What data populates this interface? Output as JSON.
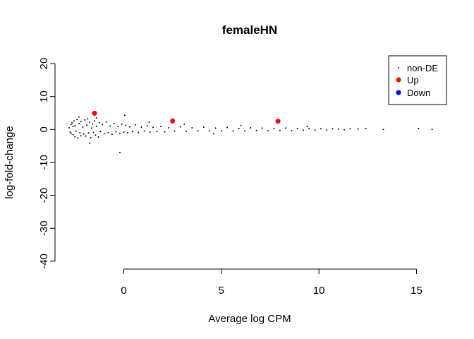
{
  "chart_data": {
    "type": "scatter",
    "title": "femaleHN",
    "xlabel": "Average log CPM",
    "ylabel": "log-fold-change",
    "xlim": [
      -2.8,
      16
    ],
    "ylim": [
      -40,
      20
    ],
    "xticks": [
      0,
      5,
      10,
      15
    ],
    "yticks": [
      -40,
      -30,
      -20,
      -10,
      0,
      10,
      20
    ],
    "xtick_labels": [
      "0",
      "5",
      "10",
      "15"
    ],
    "ytick_labels": [
      "-40",
      "-30",
      "-20",
      "-10",
      "0",
      "10",
      "20"
    ],
    "grid": false,
    "legend_position": "top-right",
    "series": [
      {
        "name": "non-DE",
        "color": "#000000",
        "marker": "small-dot",
        "points": [
          [
            -2.8,
            0.5
          ],
          [
            -2.75,
            -0.8
          ],
          [
            -2.7,
            1.5
          ],
          [
            -2.7,
            -1.2
          ],
          [
            -2.65,
            2.0
          ],
          [
            -2.6,
            -1.6
          ],
          [
            -2.6,
            0.9
          ],
          [
            -2.55,
            2.6
          ],
          [
            -2.5,
            -2.2
          ],
          [
            -2.5,
            1.1
          ],
          [
            -2.45,
            -0.5
          ],
          [
            -2.4,
            3.0
          ],
          [
            -2.35,
            -2.6
          ],
          [
            -2.3,
            1.8
          ],
          [
            -2.25,
            -1.0
          ],
          [
            -2.2,
            2.4
          ],
          [
            -2.2,
            -1.9
          ],
          [
            -2.1,
            0.7
          ],
          [
            -2.05,
            -1.4
          ],
          [
            -2.0,
            2.9
          ],
          [
            -1.95,
            -2.0
          ],
          [
            -1.9,
            1.3
          ],
          [
            -1.85,
            3.2
          ],
          [
            -1.8,
            -1.1
          ],
          [
            -1.75,
            2.2
          ],
          [
            -1.7,
            -2.5
          ],
          [
            -1.65,
            0.4
          ],
          [
            -1.6,
            1.7
          ],
          [
            -1.55,
            -0.9
          ],
          [
            -1.5,
            2.6
          ],
          [
            -1.45,
            -1.7
          ],
          [
            -1.4,
            1.0
          ],
          [
            -1.3,
            -2.3
          ],
          [
            -1.25,
            2.0
          ],
          [
            -1.2,
            -0.6
          ],
          [
            -1.1,
            1.5
          ],
          [
            -1.0,
            -1.3
          ],
          [
            -0.9,
            2.3
          ],
          [
            -0.8,
            -1.0
          ],
          [
            -0.7,
            1.1
          ],
          [
            -0.6,
            -1.5
          ],
          [
            -0.5,
            1.8
          ],
          [
            -0.4,
            -0.7
          ],
          [
            -0.3,
            0.9
          ],
          [
            -0.2,
            -1.2
          ],
          [
            -0.1,
            1.6
          ],
          [
            0.0,
            -0.8
          ],
          [
            0.1,
            1.2
          ],
          [
            0.2,
            -1.0
          ],
          [
            0.3,
            0.8
          ],
          [
            0.45,
            -0.6
          ],
          [
            0.6,
            1.4
          ],
          [
            0.75,
            -0.9
          ],
          [
            0.9,
            0.7
          ],
          [
            1.05,
            -0.5
          ],
          [
            1.2,
            1.1
          ],
          [
            1.35,
            -0.8
          ],
          [
            1.5,
            0.6
          ],
          [
            1.7,
            -0.6
          ],
          [
            1.9,
            0.9
          ],
          [
            2.1,
            -0.7
          ],
          [
            2.3,
            0.5
          ],
          [
            2.6,
            -0.5
          ],
          [
            2.9,
            0.8
          ],
          [
            3.2,
            -0.6
          ],
          [
            3.5,
            0.5
          ],
          [
            3.8,
            -0.4
          ],
          [
            4.1,
            0.7
          ],
          [
            4.4,
            -0.5
          ],
          [
            4.7,
            0.4
          ],
          [
            5.0,
            -0.4
          ],
          [
            5.3,
            0.6
          ],
          [
            5.6,
            -0.5
          ],
          [
            5.9,
            0.3
          ],
          [
            6.2,
            -0.4
          ],
          [
            6.5,
            0.5
          ],
          [
            6.8,
            -0.3
          ],
          [
            7.1,
            0.4
          ],
          [
            7.4,
            -0.4
          ],
          [
            7.7,
            0.3
          ],
          [
            8.0,
            -0.3
          ],
          [
            8.3,
            0.4
          ],
          [
            8.6,
            -0.3
          ],
          [
            8.9,
            0.3
          ],
          [
            9.2,
            -0.2
          ],
          [
            9.5,
            0.3
          ],
          [
            9.8,
            -0.2
          ],
          [
            10.1,
            0.2
          ],
          [
            10.4,
            -0.2
          ],
          [
            10.7,
            0.2
          ],
          [
            11.0,
            0.1
          ],
          [
            11.3,
            -0.1
          ],
          [
            11.6,
            0.2
          ],
          [
            12.0,
            0.1
          ],
          [
            12.4,
            0.3
          ],
          [
            13.3,
            0.0
          ],
          [
            15.1,
            0.3
          ],
          [
            15.8,
            0.0
          ],
          [
            0.05,
            4.3
          ],
          [
            -0.2,
            -7.0
          ],
          [
            -1.75,
            -4.2
          ],
          [
            -2.3,
            3.8
          ],
          [
            -1.4,
            3.5
          ],
          [
            1.3,
            2.2
          ],
          [
            3.1,
            1.6
          ],
          [
            4.6,
            -1.3
          ],
          [
            6.0,
            1.2
          ],
          [
            9.4,
            0.9
          ]
        ]
      },
      {
        "name": "Up",
        "color": "#ff0000",
        "marker": "filled-circle",
        "points": [
          [
            -1.5,
            4.9
          ],
          [
            2.5,
            2.6
          ],
          [
            7.9,
            2.5
          ]
        ]
      },
      {
        "name": "Down",
        "color": "#0000ff",
        "marker": "filled-circle",
        "points": []
      }
    ]
  }
}
